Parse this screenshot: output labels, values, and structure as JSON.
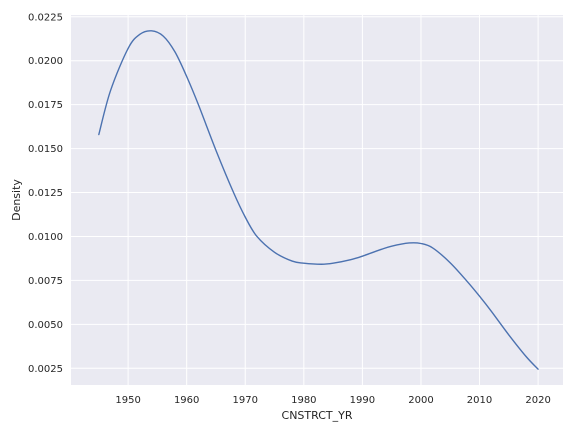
{
  "chart_data": {
    "type": "line",
    "title": "",
    "xlabel": "CNSTRCT_YR",
    "ylabel": "Density",
    "xlim": [
      1940.25,
      2024.25
    ],
    "ylim": [
      0.00155,
      0.0226
    ],
    "grid": true,
    "colors": {
      "background": "#eaeaf2",
      "line": "#4c72b0",
      "grid": "#ffffff",
      "text": "#262626"
    },
    "x_ticks": [
      1950,
      1960,
      1970,
      1980,
      1990,
      2000,
      2010,
      2020
    ],
    "x_tick_labels": [
      "1950",
      "1960",
      "1970",
      "1980",
      "1990",
      "2000",
      "2010",
      "2020"
    ],
    "y_ticks": [
      0.0025,
      0.005,
      0.0075,
      0.01,
      0.0125,
      0.015,
      0.0175,
      0.02,
      0.0225
    ],
    "y_tick_labels": [
      "0.0025",
      "0.0050",
      "0.0075",
      "0.0100",
      "0.0125",
      "0.0150",
      "0.0175",
      "0.0200",
      "0.0225"
    ],
    "series": [
      {
        "name": "CNSTRCT_YR",
        "x": [
          1945,
          1947,
          1950,
          1952,
          1954,
          1956,
          1958,
          1960,
          1962,
          1965,
          1968,
          1970,
          1972,
          1975,
          1978,
          1980,
          1983,
          1985,
          1988,
          1990,
          1993,
          1995,
          1998,
          2000,
          2002,
          2005,
          2008,
          2010,
          2012,
          2015,
          2018,
          2020
        ],
        "y": [
          0.0158,
          0.0183,
          0.0207,
          0.0215,
          0.0217,
          0.0214,
          0.0205,
          0.0191,
          0.0175,
          0.0149,
          0.0125,
          0.0111,
          0.01,
          0.0091,
          0.0086,
          0.00848,
          0.00842,
          0.00848,
          0.00868,
          0.00888,
          0.00924,
          0.00945,
          0.00963,
          0.0096,
          0.00935,
          0.0085,
          0.0074,
          0.0066,
          0.00575,
          0.0044,
          0.00315,
          0.00245
        ]
      }
    ]
  }
}
